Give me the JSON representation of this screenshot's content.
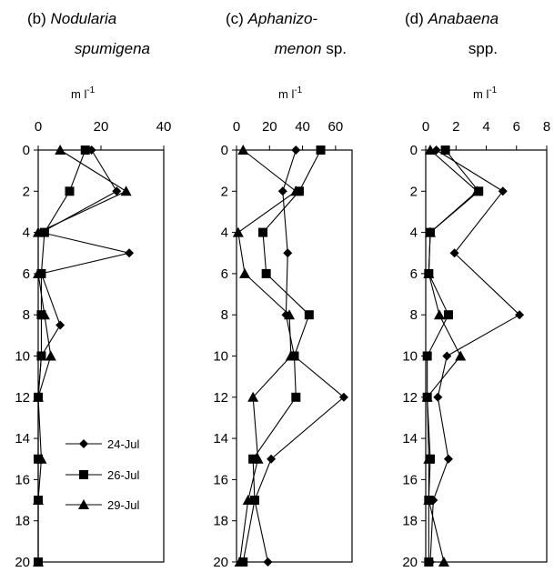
{
  "chart_data": [
    {
      "type": "line",
      "panel_letter": "(b)",
      "title": {
        "line1": "Nodularia",
        "line2": "spumigena",
        "sp_suffix": "",
        "italic_all": true
      },
      "unit": "m l",
      "unit_exp": "-1",
      "xlim": [
        0,
        40
      ],
      "xticks": [
        0,
        20,
        40
      ],
      "ylim": [
        0,
        20
      ],
      "yticks": [
        0,
        2,
        4,
        6,
        8,
        10,
        12,
        14,
        16,
        18,
        20
      ],
      "y_inverted": true,
      "series": [
        {
          "name": "24-Jul",
          "marker": "diamond",
          "points": [
            [
              17,
              0
            ],
            [
              25,
              2
            ],
            [
              1,
              4
            ],
            [
              29,
              5
            ],
            [
              1,
              6
            ],
            [
              7,
              8.5
            ],
            [
              1,
              10
            ],
            [
              0,
              12
            ],
            [
              0,
              15
            ],
            [
              0,
              17
            ],
            [
              0,
              20
            ]
          ]
        },
        {
          "name": "26-Jul",
          "marker": "square",
          "points": [
            [
              15,
              0
            ],
            [
              10,
              2
            ],
            [
              2,
              4
            ],
            [
              1,
              6
            ],
            [
              1,
              8
            ],
            [
              1,
              10
            ],
            [
              0,
              12
            ],
            [
              0,
              15
            ],
            [
              0,
              17
            ],
            [
              0,
              20
            ]
          ]
        },
        {
          "name": "29-Jul",
          "marker": "triangle",
          "points": [
            [
              7,
              0
            ],
            [
              28,
              2
            ],
            [
              0,
              4
            ],
            [
              0,
              6
            ],
            [
              2,
              8
            ],
            [
              4,
              10
            ],
            [
              0,
              12
            ],
            [
              1,
              15
            ],
            [
              0,
              17
            ],
            [
              0,
              20
            ]
          ]
        }
      ],
      "legend": {
        "position": "bottom-right"
      }
    },
    {
      "type": "line",
      "panel_letter": "(c)",
      "title": {
        "line1": "Aphanizo-",
        "line2": "menon",
        "sp_suffix": "sp.",
        "italic_all": false
      },
      "unit": "m l",
      "unit_exp": "-1",
      "xlim": [
        0,
        70
      ],
      "xticks": [
        0,
        20,
        40,
        60
      ],
      "ylim": [
        0,
        20
      ],
      "yticks": [
        0,
        2,
        4,
        6,
        8,
        10,
        12,
        14,
        16,
        18,
        20
      ],
      "y_inverted": true,
      "series": [
        {
          "name": "24-Jul",
          "marker": "diamond",
          "points": [
            [
              36,
              0
            ],
            [
              28,
              2
            ],
            [
              31,
              5
            ],
            [
              30,
              8
            ],
            [
              35,
              10
            ],
            [
              65,
              12
            ],
            [
              21,
              15
            ],
            [
              11,
              17
            ],
            [
              19,
              20
            ]
          ]
        },
        {
          "name": "26-Jul",
          "marker": "square",
          "points": [
            [
              51,
              0
            ],
            [
              38,
              2
            ],
            [
              16,
              4
            ],
            [
              18,
              6
            ],
            [
              44,
              8
            ],
            [
              35,
              10
            ],
            [
              36,
              12
            ],
            [
              10,
              15
            ],
            [
              11,
              17
            ],
            [
              4,
              20
            ]
          ]
        },
        {
          "name": "29-Jul",
          "marker": "triangle",
          "points": [
            [
              4,
              0
            ],
            [
              36,
              2
            ],
            [
              1,
              4
            ],
            [
              5,
              6
            ],
            [
              32,
              8
            ],
            [
              33,
              10
            ],
            [
              10,
              12
            ],
            [
              13,
              15
            ],
            [
              7,
              17
            ],
            [
              2,
              20
            ]
          ]
        }
      ]
    },
    {
      "type": "line",
      "panel_letter": "(d)",
      "title": {
        "line1": "Anabaena",
        "line2": "spp.",
        "sp_suffix": "",
        "italic_all": false
      },
      "unit": "m l",
      "unit_exp": "-1",
      "xlim": [
        0,
        8
      ],
      "xticks": [
        0,
        2,
        4,
        6,
        8
      ],
      "ylim": [
        0,
        20
      ],
      "yticks": [
        0,
        2,
        4,
        6,
        8,
        10,
        12,
        14,
        16,
        18,
        20
      ],
      "y_inverted": true,
      "series": [
        {
          "name": "24-Jul",
          "marker": "diamond",
          "points": [
            [
              0.7,
              0
            ],
            [
              5.1,
              2
            ],
            [
              1.9,
              5
            ],
            [
              6.2,
              8
            ],
            [
              1.4,
              10
            ],
            [
              0.8,
              12
            ],
            [
              1.5,
              15
            ],
            [
              0.5,
              17
            ],
            [
              0.3,
              20
            ]
          ]
        },
        {
          "name": "26-Jul",
          "marker": "square",
          "points": [
            [
              1.3,
              0
            ],
            [
              3.5,
              2
            ],
            [
              0.3,
              4
            ],
            [
              0.2,
              6
            ],
            [
              1.5,
              8
            ],
            [
              0.1,
              10
            ],
            [
              0.1,
              12
            ],
            [
              0.3,
              15
            ],
            [
              0.2,
              17
            ],
            [
              0.2,
              20
            ]
          ]
        },
        {
          "name": "29-Jul",
          "marker": "triangle",
          "points": [
            [
              0.3,
              0
            ],
            [
              3.4,
              2
            ],
            [
              0.3,
              4
            ],
            [
              0.2,
              6
            ],
            [
              0.9,
              8
            ],
            [
              2.3,
              10
            ],
            [
              0.1,
              12
            ],
            [
              0.2,
              15
            ],
            [
              0.2,
              17
            ],
            [
              1.2,
              20
            ]
          ]
        }
      ]
    }
  ],
  "legend_entries": [
    "24-Jul",
    "26-Jul",
    "29-Jul"
  ]
}
